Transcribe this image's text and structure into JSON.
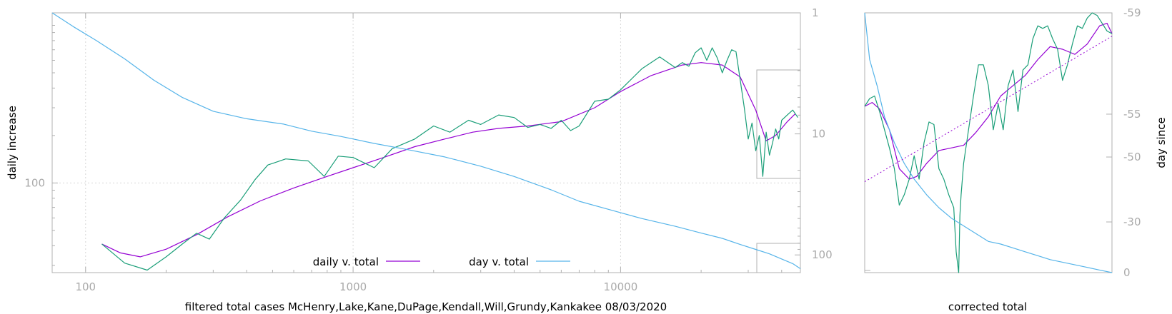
{
  "chart_data": [
    {
      "type": "line",
      "xlabel": "filtered total cases McHenry,Lake,Kane,DuPage,Kendall,Will,Grundy,Kankakee 08/03/2020",
      "ylabel": "daily increase",
      "y2label": "",
      "x_scale": "log",
      "xlim": [
        75,
        47000
      ],
      "x_ticks": [
        "100",
        "1000",
        "10000"
      ],
      "y_scale": "log",
      "ylim": [
        27,
        1200
      ],
      "y_ticks": [
        "100"
      ],
      "y2_scale": "log",
      "y2_reversed": true,
      "y2lim": [
        1,
        140
      ],
      "y2_ticks": [
        "1",
        "10",
        "100"
      ],
      "grid": true,
      "legend": "bottom-center",
      "series": [
        {
          "name": "daily v. total",
          "color": "#9400d3",
          "axis": "y",
          "x": [
            115,
            135,
            160,
            200,
            260,
            340,
            450,
            600,
            800,
            1000,
            1300,
            1700,
            2200,
            2800,
            3500,
            4500,
            6000,
            8000,
            10000,
            13000,
            17000,
            20000,
            24000,
            28000,
            32000,
            35000,
            38000,
            42000,
            45000
          ],
          "y": [
            41,
            36,
            34,
            38,
            47,
            61,
            77,
            93,
            110,
            125,
            145,
            170,
            190,
            210,
            222,
            230,
            245,
            300,
            380,
            480,
            560,
            580,
            560,
            470,
            290,
            185,
            200,
            245,
            275
          ]
        },
        {
          "name": "",
          "color": "#1a9e78",
          "axis": "y",
          "x": [
            115,
            140,
            170,
            200,
            230,
            260,
            290,
            330,
            380,
            430,
            480,
            560,
            680,
            780,
            880,
            1000,
            1200,
            1400,
            1700,
            2000,
            2300,
            2700,
            3000,
            3500,
            4000,
            4500,
            5000,
            5500,
            6000,
            6500,
            7000,
            8000,
            9000,
            10000,
            12000,
            14000,
            16000,
            17000,
            18000,
            19000,
            20000,
            21000,
            22000,
            23000,
            24000,
            25000,
            26000,
            27000,
            28000,
            29000,
            30000,
            31000,
            32000,
            33000,
            34000,
            35000,
            36000,
            37000,
            38000,
            39000,
            40000,
            42000,
            44000,
            46000
          ],
          "y": [
            41,
            31,
            28,
            34,
            41,
            48,
            44,
            60,
            78,
            105,
            130,
            142,
            138,
            110,
            148,
            145,
            125,
            165,
            190,
            230,
            210,
            250,
            235,
            270,
            260,
            225,
            235,
            222,
            250,
            215,
            230,
            330,
            340,
            390,
            530,
            630,
            540,
            580,
            550,
            670,
            720,
            600,
            720,
            620,
            500,
            600,
            700,
            680,
            450,
            300,
            190,
            240,
            160,
            200,
            110,
            210,
            150,
            180,
            220,
            190,
            250,
            270,
            290,
            260
          ]
        },
        {
          "name": "day v. total",
          "color": "#56b4e9",
          "axis": "y2",
          "x": [
            75,
            90,
            110,
            140,
            180,
            230,
            300,
            400,
            550,
            700,
            900,
            1200,
            1600,
            2200,
            3000,
            4000,
            5500,
            7000,
            9000,
            12000,
            16000,
            20000,
            24000,
            28000,
            32000,
            36000,
            40000,
            44000,
            47000
          ],
          "y2": [
            1.0,
            1.3,
            1.7,
            2.4,
            3.6,
            5.0,
            6.5,
            7.5,
            8.3,
            9.5,
            10.5,
            12.0,
            13.5,
            15.5,
            18.5,
            22.5,
            29.0,
            36.0,
            42.0,
            50.0,
            58.0,
            66.0,
            73.0,
            82.0,
            90.0,
            98.0,
            108.0,
            118.0,
            130.0
          ]
        }
      ]
    },
    {
      "type": "line",
      "xlabel": "corrected total",
      "ylabel": "",
      "y2label": "day since",
      "y2_ticks": [
        "-59",
        "-55",
        "-50",
        "-30",
        "0"
      ],
      "grid": false,
      "series": [
        {
          "name": "",
          "color": "#9400d3",
          "x": [
            0,
            0.03,
            0.06,
            0.1,
            0.14,
            0.18,
            0.21,
            0.25,
            0.3,
            0.35,
            0.4,
            0.45,
            0.5,
            0.55,
            0.6,
            0.65,
            0.7,
            0.75,
            0.8,
            0.85,
            0.9,
            0.95,
            0.98,
            1.0
          ],
          "y": [
            0.64,
            0.655,
            0.63,
            0.55,
            0.4,
            0.36,
            0.37,
            0.42,
            0.47,
            0.48,
            0.49,
            0.54,
            0.6,
            0.68,
            0.72,
            0.76,
            0.82,
            0.87,
            0.86,
            0.84,
            0.88,
            0.95,
            0.96,
            0.92
          ]
        },
        {
          "name": "",
          "color": "#1a9e78",
          "x": [
            0,
            0.02,
            0.04,
            0.06,
            0.08,
            0.1,
            0.12,
            0.14,
            0.16,
            0.18,
            0.2,
            0.22,
            0.24,
            0.26,
            0.28,
            0.3,
            0.32,
            0.34,
            0.36,
            0.37,
            0.38,
            0.385,
            0.39,
            0.4,
            0.42,
            0.44,
            0.46,
            0.48,
            0.5,
            0.52,
            0.54,
            0.56,
            0.58,
            0.6,
            0.62,
            0.64,
            0.66,
            0.68,
            0.7,
            0.72,
            0.74,
            0.76,
            0.78,
            0.8,
            0.82,
            0.84,
            0.86,
            0.88,
            0.9,
            0.92,
            0.94,
            0.96,
            0.98,
            1.0
          ],
          "y": [
            0.64,
            0.67,
            0.68,
            0.62,
            0.55,
            0.48,
            0.4,
            0.26,
            0.3,
            0.36,
            0.45,
            0.36,
            0.5,
            0.58,
            0.57,
            0.4,
            0.36,
            0.3,
            0.25,
            0.08,
            0.0,
            0.22,
            0.3,
            0.42,
            0.55,
            0.68,
            0.8,
            0.8,
            0.72,
            0.55,
            0.65,
            0.55,
            0.72,
            0.78,
            0.62,
            0.78,
            0.8,
            0.9,
            0.95,
            0.94,
            0.95,
            0.9,
            0.86,
            0.74,
            0.8,
            0.88,
            0.95,
            0.94,
            0.98,
            1.0,
            0.99,
            0.96,
            0.93,
            0.92
          ]
        },
        {
          "name": "",
          "color": "#56b4e9",
          "x": [
            0,
            0.02,
            0.05,
            0.08,
            0.12,
            0.16,
            0.2,
            0.25,
            0.3,
            0.35,
            0.4,
            0.45,
            0.5,
            0.55,
            0.6,
            0.65,
            0.7,
            0.75,
            0.8,
            0.85,
            0.9,
            0.95,
            1.0
          ],
          "y": [
            1.0,
            0.82,
            0.72,
            0.6,
            0.5,
            0.42,
            0.36,
            0.3,
            0.25,
            0.21,
            0.18,
            0.15,
            0.12,
            0.11,
            0.095,
            0.08,
            0.065,
            0.05,
            0.04,
            0.03,
            0.02,
            0.01,
            0.0
          ]
        },
        {
          "name": "",
          "color": "#9400d3",
          "style": "dotted",
          "x": [
            0,
            1.0
          ],
          "y": [
            0.35,
            0.91
          ]
        }
      ]
    }
  ],
  "legend": {
    "daily_label": "daily v. total",
    "day_label": "day v. total"
  }
}
